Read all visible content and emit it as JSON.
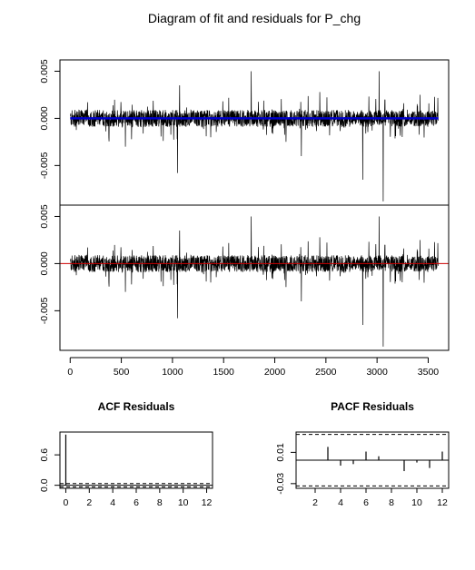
{
  "title": "Diagram of fit and residuals for P_chg",
  "colors": {
    "series": "#000000",
    "fit_line": "#0000cc",
    "zero_line": "#cc0000",
    "ci_line": "#000000"
  },
  "chart_data": [
    {
      "type": "line",
      "panel": "fit",
      "xlim": [
        -100,
        3700
      ],
      "ylim": [
        -0.0092,
        0.0062
      ],
      "yticks": [
        0.005,
        0.0,
        -0.005
      ],
      "yticklabels": [
        "0.005",
        "0.000",
        "-0.005"
      ],
      "xticks": [],
      "n": 3600,
      "series": [
        {
          "values_summary": "residual-like spikes around 0, largest +0.0055 near x=3050 and -0.0088 near x=3060"
        },
        {
          "color_key": "fit_line",
          "values_summary": "fitted values nearly 0 across x 0-3600"
        }
      ],
      "spikes": [
        {
          "x": 1050,
          "y": -0.0058
        },
        {
          "x": 1070,
          "y": 0.0035
        },
        {
          "x": 1770,
          "y": 0.005
        },
        {
          "x": 2260,
          "y": -0.004
        },
        {
          "x": 2860,
          "y": -0.0065
        },
        {
          "x": 3020,
          "y": 0.005
        },
        {
          "x": 3045,
          "y": 0.0055
        },
        {
          "x": 3060,
          "y": -0.0088
        },
        {
          "x": 540,
          "y": -0.003
        },
        {
          "x": 2440,
          "y": 0.0028
        },
        {
          "x": 3420,
          "y": 0.0025
        }
      ]
    },
    {
      "type": "line",
      "panel": "residuals",
      "xlim": [
        -100,
        3700
      ],
      "ylim": [
        -0.0092,
        0.0062
      ],
      "yticks": [
        0.005,
        0.0,
        -0.005
      ],
      "yticklabels": [
        "0.005",
        "0.000",
        "-0.005"
      ],
      "xticks": [
        0,
        500,
        1000,
        1500,
        2000,
        2500,
        3000,
        3500
      ],
      "xticklabels": [
        "0",
        "500",
        "1000",
        "1500",
        "2000",
        "2500",
        "3000",
        "3500"
      ],
      "reference_line": {
        "y": 0,
        "color_key": "zero_line"
      }
    },
    {
      "type": "bar",
      "title": "ACF Residuals",
      "x": [
        0,
        1,
        2,
        3,
        4,
        5,
        6,
        7,
        8,
        9,
        10,
        11,
        12
      ],
      "values": [
        1.0,
        0.01,
        -0.01,
        0.01,
        -0.01,
        0.005,
        0.005,
        -0.005,
        0.005,
        -0.01,
        0.005,
        -0.005,
        0.005
      ],
      "ci": [
        -0.033,
        0.033
      ],
      "xlim": [
        -0.5,
        12.5
      ],
      "ylim": [
        -0.06,
        1.05
      ],
      "xticks": [
        0,
        2,
        4,
        6,
        8,
        10,
        12
      ],
      "xticklabels": [
        "0",
        "2",
        "4",
        "6",
        "8",
        "10",
        "12"
      ],
      "yticks": [
        0.0,
        0.6
      ],
      "yticklabels": [
        "0.0",
        "0.6"
      ]
    },
    {
      "type": "bar",
      "title": "PACF Residuals",
      "x": [
        1,
        2,
        3,
        4,
        5,
        6,
        7,
        8,
        9,
        10,
        11,
        12
      ],
      "values": [
        0.0,
        0.0,
        0.017,
        -0.007,
        -0.005,
        0.011,
        0.005,
        0.0,
        -0.014,
        -0.003,
        -0.01,
        0.011
      ],
      "ci": [
        -0.033,
        0.033
      ],
      "xlim": [
        0.5,
        12.5
      ],
      "ylim": [
        -0.036,
        0.036
      ],
      "xticks": [
        2,
        4,
        6,
        8,
        10,
        12
      ],
      "xticklabels": [
        "2",
        "4",
        "6",
        "8",
        "10",
        "12"
      ],
      "yticks": [
        0.01,
        -0.03
      ],
      "yticklabels": [
        "0.01",
        "-0.03"
      ]
    }
  ]
}
